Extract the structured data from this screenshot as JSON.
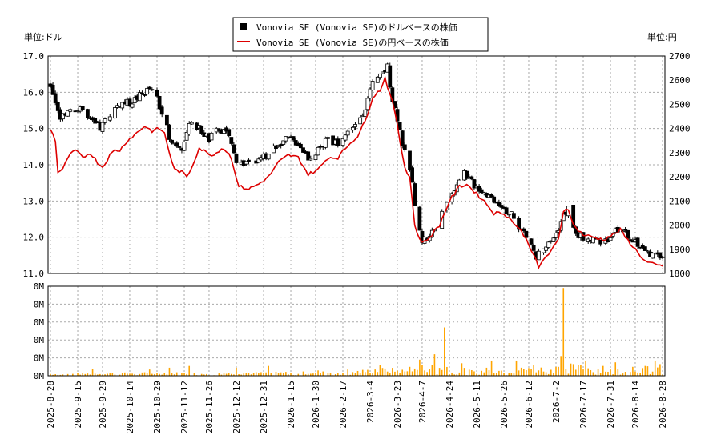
{
  "chart_data": {
    "type": "candlestick+line+bar",
    "units": {
      "left": "単位:ドル",
      "right": "単位:円"
    },
    "legend": {
      "placement": "top-center",
      "items": [
        {
          "label": "Vonovia SE (Vonovia SE)のドルベースの株価",
          "color": "#000000",
          "kind": "square"
        },
        {
          "label": "Vonovia SE (Vonovia SE)の円ベースの株価",
          "color": "#dd0000",
          "kind": "line"
        }
      ]
    },
    "price_axis": {
      "left": {
        "min": 11.0,
        "max": 17.0,
        "ticks": [
          "11.0",
          "12.0",
          "13.0",
          "14.0",
          "15.0",
          "16.0",
          "17.0"
        ]
      },
      "right": {
        "min": 1800,
        "max": 2700,
        "ticks": [
          "1800",
          "1900",
          "2000",
          "2100",
          "2200",
          "2300",
          "2400",
          "2500",
          "2600",
          "2700"
        ]
      }
    },
    "volume_axis": {
      "ticks": [
        "0M",
        "0M",
        "0M",
        "0M",
        "0M",
        "0M"
      ]
    },
    "x_axis": {
      "ticks": [
        "2025-8-28",
        "2025-9-15",
        "2025-9-29",
        "2025-10-14",
        "2025-10-29",
        "2025-11-12",
        "2025-11-26",
        "2025-12-12",
        "2025-12-31",
        "2026-1-15",
        "2026-1-30",
        "2026-2-17",
        "2026-3-4",
        "2026-3-23",
        "2026-4-7",
        "2026-4-24",
        "2026-5-11",
        "2026-5-26",
        "2026-6-12",
        "2026-7-2",
        "2026-7-17",
        "2026-7-31",
        "2026-8-14",
        "2026-8-28"
      ]
    },
    "grid": true,
    "usd_anchors": [
      [
        0,
        16.2
      ],
      [
        4,
        15.3
      ],
      [
        8,
        15.6
      ],
      [
        12,
        15.5
      ],
      [
        16,
        15.2
      ],
      [
        20,
        15.0
      ],
      [
        24,
        15.4
      ],
      [
        28,
        15.7
      ],
      [
        32,
        15.7
      ],
      [
        36,
        15.9
      ],
      [
        40,
        16.1
      ],
      [
        43,
        15.8
      ],
      [
        46,
        15.2
      ],
      [
        48,
        14.8
      ],
      [
        50,
        14.6
      ],
      [
        53,
        14.5
      ],
      [
        56,
        15.1
      ],
      [
        60,
        15.0
      ],
      [
        64,
        14.7
      ],
      [
        68,
        15.0
      ],
      [
        72,
        14.8
      ],
      [
        74,
        14.3
      ],
      [
        76,
        14.0
      ],
      [
        80,
        14.1
      ],
      [
        84,
        14.1
      ],
      [
        88,
        14.3
      ],
      [
        92,
        14.6
      ],
      [
        96,
        14.7
      ],
      [
        100,
        14.6
      ],
      [
        104,
        14.2
      ],
      [
        108,
        14.4
      ],
      [
        112,
        14.7
      ],
      [
        116,
        14.6
      ],
      [
        120,
        14.9
      ],
      [
        124,
        15.2
      ],
      [
        127,
        15.6
      ],
      [
        130,
        16.2
      ],
      [
        134,
        16.5
      ],
      [
        136,
        16.7
      ],
      [
        138,
        15.8
      ],
      [
        140,
        15.3
      ],
      [
        142,
        14.6
      ],
      [
        144,
        14.0
      ],
      [
        146,
        13.6
      ],
      [
        148,
        12.3
      ],
      [
        150,
        11.9
      ],
      [
        152,
        12.0
      ],
      [
        156,
        12.3
      ],
      [
        160,
        13.0
      ],
      [
        164,
        13.5
      ],
      [
        167,
        13.8
      ],
      [
        170,
        13.5
      ],
      [
        174,
        13.3
      ],
      [
        178,
        13.1
      ],
      [
        182,
        12.9
      ],
      [
        186,
        12.6
      ],
      [
        190,
        12.2
      ],
      [
        194,
        11.8
      ],
      [
        196,
        11.4
      ],
      [
        198,
        11.7
      ],
      [
        201,
        11.8
      ],
      [
        204,
        12.1
      ],
      [
        207,
        12.6
      ],
      [
        209,
        12.8
      ],
      [
        211,
        12.2
      ],
      [
        214,
        12.0
      ],
      [
        218,
        11.9
      ],
      [
        222,
        11.9
      ],
      [
        226,
        12.0
      ],
      [
        230,
        12.3
      ],
      [
        232,
        12.1
      ],
      [
        236,
        11.9
      ],
      [
        240,
        11.6
      ],
      [
        244,
        11.5
      ],
      [
        247,
        11.4
      ]
    ],
    "jpy_anchors": [
      [
        0,
        2400
      ],
      [
        2,
        2350
      ],
      [
        3,
        2220
      ],
      [
        5,
        2230
      ],
      [
        7,
        2280
      ],
      [
        10,
        2310
      ],
      [
        13,
        2280
      ],
      [
        16,
        2300
      ],
      [
        19,
        2260
      ],
      [
        21,
        2240
      ],
      [
        24,
        2290
      ],
      [
        26,
        2310
      ],
      [
        28,
        2310
      ],
      [
        31,
        2350
      ],
      [
        34,
        2375
      ],
      [
        38,
        2410
      ],
      [
        41,
        2390
      ],
      [
        44,
        2400
      ],
      [
        46,
        2380
      ],
      [
        48,
        2300
      ],
      [
        50,
        2230
      ],
      [
        53,
        2220
      ],
      [
        55,
        2200
      ],
      [
        57,
        2240
      ],
      [
        60,
        2320
      ],
      [
        63,
        2300
      ],
      [
        66,
        2290
      ],
      [
        69,
        2320
      ],
      [
        72,
        2300
      ],
      [
        74,
        2240
      ],
      [
        76,
        2160
      ],
      [
        80,
        2150
      ],
      [
        84,
        2170
      ],
      [
        88,
        2200
      ],
      [
        92,
        2260
      ],
      [
        96,
        2290
      ],
      [
        100,
        2280
      ],
      [
        104,
        2210
      ],
      [
        108,
        2230
      ],
      [
        112,
        2280
      ],
      [
        116,
        2280
      ],
      [
        120,
        2330
      ],
      [
        124,
        2370
      ],
      [
        127,
        2430
      ],
      [
        130,
        2530
      ],
      [
        133,
        2560
      ],
      [
        135,
        2610
      ],
      [
        137,
        2540
      ],
      [
        139,
        2470
      ],
      [
        141,
        2350
      ],
      [
        143,
        2240
      ],
      [
        145,
        2200
      ],
      [
        147,
        2000
      ],
      [
        149,
        1940
      ],
      [
        151,
        1930
      ],
      [
        153,
        1950
      ],
      [
        157,
        2000
      ],
      [
        161,
        2100
      ],
      [
        165,
        2160
      ],
      [
        168,
        2170
      ],
      [
        171,
        2140
      ],
      [
        175,
        2100
      ],
      [
        179,
        2050
      ],
      [
        183,
        2050
      ],
      [
        187,
        2010
      ],
      [
        191,
        1960
      ],
      [
        195,
        1880
      ],
      [
        197,
        1820
      ],
      [
        199,
        1860
      ],
      [
        202,
        1890
      ],
      [
        205,
        1940
      ],
      [
        207,
        2060
      ],
      [
        209,
        2070
      ],
      [
        211,
        2000
      ],
      [
        215,
        1960
      ],
      [
        219,
        1950
      ],
      [
        223,
        1940
      ],
      [
        227,
        1960
      ],
      [
        230,
        1980
      ],
      [
        232,
        1950
      ],
      [
        236,
        1900
      ],
      [
        240,
        1850
      ],
      [
        244,
        1835
      ],
      [
        247,
        1830
      ]
    ],
    "volume_profile": [
      [
        0,
        0.02
      ],
      [
        40,
        0.03
      ],
      [
        80,
        0.03
      ],
      [
        120,
        0.04
      ],
      [
        136,
        0.07
      ],
      [
        144,
        0.05
      ],
      [
        150,
        0.09
      ],
      [
        156,
        0.1
      ],
      [
        160,
        0.1
      ],
      [
        170,
        0.05
      ],
      [
        180,
        0.06
      ],
      [
        190,
        0.07
      ],
      [
        200,
        0.08
      ],
      [
        210,
        0.1
      ],
      [
        220,
        0.08
      ],
      [
        230,
        0.06
      ],
      [
        240,
        0.08
      ],
      [
        247,
        0.1
      ]
    ],
    "volume_spikes": [
      [
        0,
        0.02
      ],
      [
        4,
        0.01
      ],
      [
        17,
        0.08
      ],
      [
        40,
        0.07
      ],
      [
        48,
        0.09
      ],
      [
        56,
        0.11
      ],
      [
        75,
        0.09
      ],
      [
        88,
        0.11
      ],
      [
        108,
        0.06
      ],
      [
        120,
        0.07
      ],
      [
        131,
        0.07
      ],
      [
        133,
        0.12
      ],
      [
        145,
        0.1
      ],
      [
        149,
        0.18
      ],
      [
        155,
        0.24
      ],
      [
        159,
        0.54
      ],
      [
        166,
        0.14
      ],
      [
        176,
        0.09
      ],
      [
        178,
        0.17
      ],
      [
        188,
        0.17
      ],
      [
        191,
        0.08
      ],
      [
        195,
        0.12
      ],
      [
        197,
        0.06
      ],
      [
        205,
        0.1
      ],
      [
        206,
        0.22
      ],
      [
        207,
        0.98
      ],
      [
        216,
        0.17
      ],
      [
        223,
        0.11
      ],
      [
        228,
        0.15
      ],
      [
        235,
        0.1
      ],
      [
        240,
        0.11
      ],
      [
        244,
        0.17
      ],
      [
        246,
        0.13
      ]
    ]
  }
}
